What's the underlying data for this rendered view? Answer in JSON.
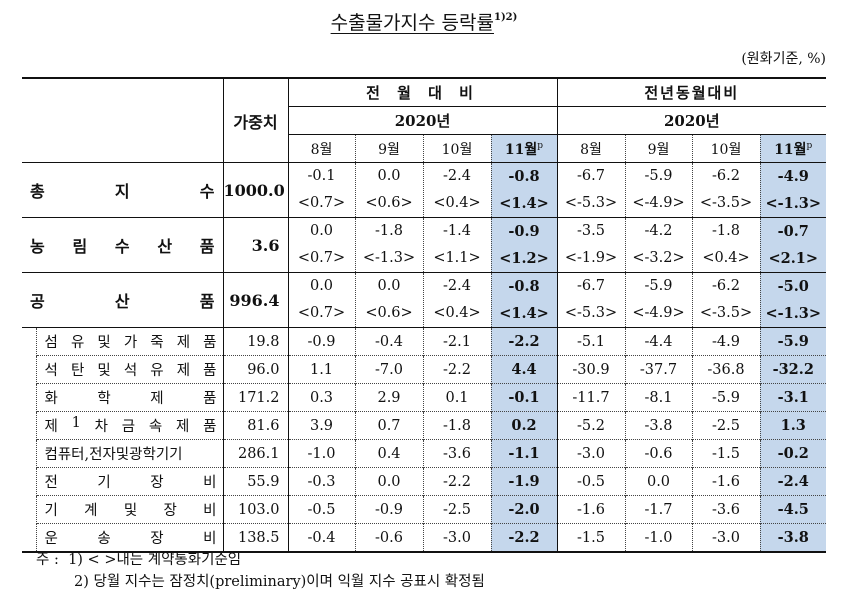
{
  "title": "수출물가지수 등락률",
  "title_sup": "1)2)",
  "unit": "(원화기준, %)",
  "header": {
    "weight_label": "가중치",
    "groups": [
      {
        "label": "전 월 대 비",
        "year": "2020년"
      },
      {
        "label": "전년동월대비",
        "year": "2020년"
      }
    ],
    "months": [
      "8월",
      "9월",
      "10월",
      "11월",
      "8월",
      "9월",
      "10월",
      "11월"
    ],
    "current_month_sup": "p"
  },
  "colors": {
    "highlight": "#c5d7ec",
    "border": "#111111"
  },
  "major_rows": [
    {
      "name_chars": [
        "총",
        "지",
        "수"
      ],
      "weight": "1000.0",
      "values": [
        "-0.1",
        "0.0",
        "-2.4",
        "-0.8",
        "-6.7",
        "-5.9",
        "-6.2",
        "-4.9"
      ],
      "contract": [
        "<0.7>",
        "<0.6>",
        "<0.4>",
        "<1.4>",
        "<-5.3>",
        "<-4.9>",
        "<-3.5>",
        "<-1.3>"
      ]
    },
    {
      "name_chars": [
        "농",
        "림",
        "수",
        "산",
        "품"
      ],
      "weight": "3.6",
      "values": [
        "0.0",
        "-1.8",
        "-1.4",
        "-0.9",
        "-3.5",
        "-4.2",
        "-1.8",
        "-0.7"
      ],
      "contract": [
        "<0.7>",
        "<-1.3>",
        "<1.1>",
        "<1.2>",
        "<-1.9>",
        "<-3.2>",
        "<0.4>",
        "<2.1>"
      ]
    },
    {
      "name_chars": [
        "공",
        "산",
        "품"
      ],
      "weight": "996.4",
      "values": [
        "0.0",
        "0.0",
        "-2.4",
        "-0.8",
        "-6.7",
        "-5.9",
        "-6.2",
        "-5.0"
      ],
      "contract": [
        "<0.7>",
        "<0.6>",
        "<0.4>",
        "<1.4>",
        "<-5.3>",
        "<-4.9>",
        "<-3.5>",
        "<-1.3>"
      ]
    }
  ],
  "sub_rows": [
    {
      "name_chars": [
        "섬",
        "유",
        "및",
        "가",
        "죽",
        "제",
        "품"
      ],
      "weight": "19.8",
      "values": [
        "-0.9",
        "-0.4",
        "-2.1",
        "-2.2",
        "-5.1",
        "-4.4",
        "-4.9",
        "-5.9"
      ]
    },
    {
      "name_chars": [
        "석",
        "탄",
        "및",
        "석",
        "유",
        "제",
        "품"
      ],
      "weight": "96.0",
      "values": [
        "1.1",
        "-7.0",
        "-2.2",
        "4.4",
        "-30.9",
        "-37.7",
        "-36.8",
        "-32.2"
      ]
    },
    {
      "name_chars": [
        "화",
        "학",
        "제",
        "품"
      ],
      "weight": "171.2",
      "values": [
        "0.3",
        "2.9",
        "0.1",
        "-0.1",
        "-11.7",
        "-8.1",
        "-5.9",
        "-3.1"
      ]
    },
    {
      "name_chars": [
        "제",
        "1",
        "차",
        "금",
        "속",
        "제",
        "품"
      ],
      "weight": "81.6",
      "values": [
        "3.9",
        "0.7",
        "-1.8",
        "0.2",
        "-5.2",
        "-3.8",
        "-2.5",
        "1.3"
      ]
    },
    {
      "name_chars": [
        "컴퓨터,전자및광학기기"
      ],
      "weight": "286.1",
      "values": [
        "-1.0",
        "0.4",
        "-3.6",
        "-1.1",
        "-3.0",
        "-0.6",
        "-1.5",
        "-0.2"
      ]
    },
    {
      "name_chars": [
        "전",
        "기",
        "장",
        "비"
      ],
      "weight": "55.9",
      "values": [
        "-0.3",
        "0.0",
        "-2.2",
        "-1.9",
        "-0.5",
        "0.0",
        "-1.6",
        "-2.4"
      ]
    },
    {
      "name_chars": [
        "기",
        "계",
        "및",
        "장",
        "비"
      ],
      "weight": "103.0",
      "values": [
        "-0.5",
        "-0.9",
        "-2.5",
        "-2.0",
        "-1.6",
        "-1.7",
        "-3.6",
        "-4.5"
      ]
    },
    {
      "name_chars": [
        "운",
        "송",
        "장",
        "비"
      ],
      "weight": "138.5",
      "values": [
        "-0.4",
        "-0.6",
        "-3.0",
        "-2.2",
        "-1.5",
        "-1.0",
        "-3.0",
        "-3.8"
      ]
    }
  ],
  "notes": {
    "prefix": "주 :",
    "items": [
      "1) < >내는 계약통화기준임",
      "2) 당월 지수는 잠정치(preliminary)이며 익월 지수 공표시 확정됨"
    ]
  }
}
